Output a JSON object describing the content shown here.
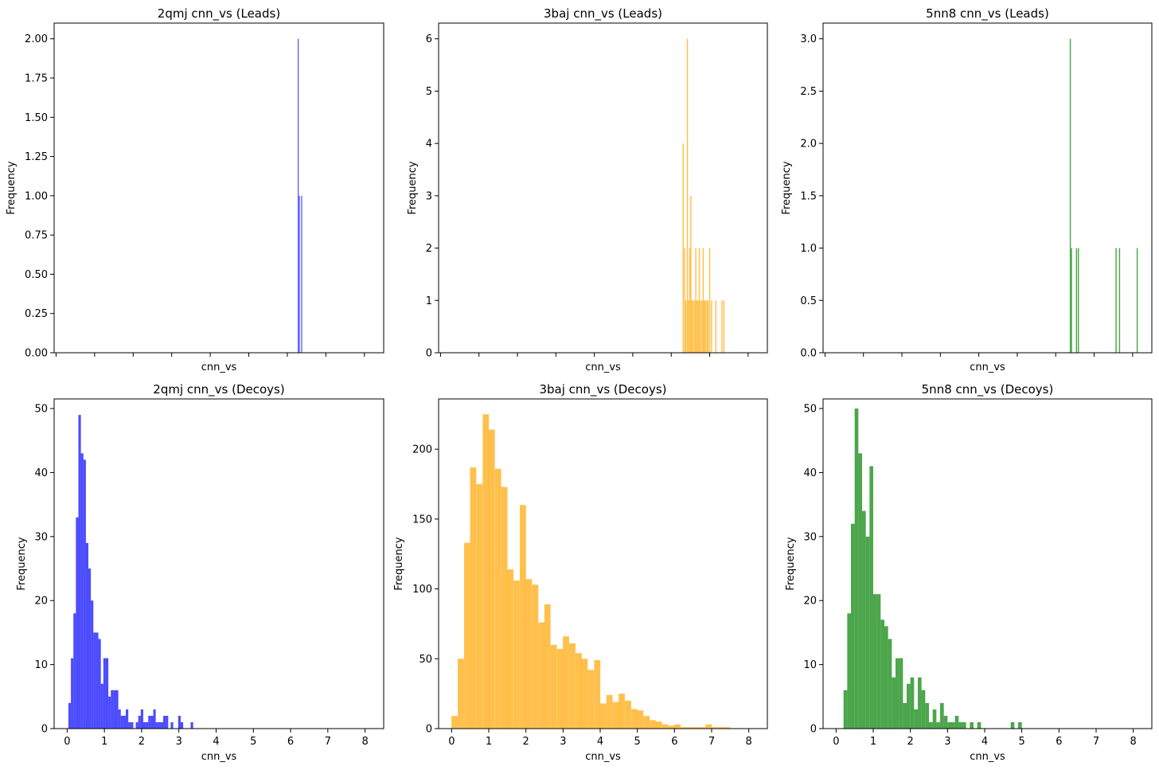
{
  "chart_data": [
    {
      "type": "bar",
      "title": "2qmj cnn_vs (Leads)",
      "xlabel": "cnn_vs",
      "ylabel": "Frequency",
      "color": "#0000ff",
      "xlim": [
        -0.05,
        8.5
      ],
      "ylim": [
        0,
        2.1
      ],
      "yticks": [
        0,
        0.25,
        0.5,
        0.75,
        1.0,
        1.25,
        1.5,
        1.75,
        2.0
      ],
      "ytick_labels": [
        "0.00",
        "0.25",
        "0.50",
        "0.75",
        "1.00",
        "1.25",
        "1.50",
        "1.75",
        "2.00"
      ],
      "xticks": [
        0,
        1,
        2,
        3,
        4,
        5,
        6,
        7,
        8
      ],
      "xtick_labels": [
        "",
        "",
        "",
        "",
        "",
        "",
        "",
        "",
        ""
      ],
      "bin_width": 0.02,
      "bars": [
        [
          6.28,
          2
        ],
        [
          6.31,
          1
        ],
        [
          6.37,
          1
        ]
      ]
    },
    {
      "type": "bar",
      "title": "3baj cnn_vs (Leads)",
      "xlabel": "cnn_vs",
      "ylabel": "Frequency",
      "color": "#ffa500",
      "xlim": [
        -0.05,
        8.5
      ],
      "ylim": [
        0,
        6.3
      ],
      "yticks": [
        0,
        1,
        2,
        3,
        4,
        5,
        6
      ],
      "ytick_labels": [
        "0",
        "1",
        "2",
        "3",
        "4",
        "5",
        "6"
      ],
      "xticks": [
        0,
        1,
        2,
        3,
        4,
        5,
        6,
        7,
        8
      ],
      "xtick_labels": [
        "",
        "",
        "",
        "",
        "",
        "",
        "",
        "",
        ""
      ],
      "bin_width": 0.03,
      "bars": [
        [
          6.31,
          4
        ],
        [
          6.35,
          2
        ],
        [
          6.38,
          1
        ],
        [
          6.42,
          6
        ],
        [
          6.45,
          1
        ],
        [
          6.48,
          2
        ],
        [
          6.51,
          3
        ],
        [
          6.54,
          1
        ],
        [
          6.57,
          1
        ],
        [
          6.61,
          1
        ],
        [
          6.64,
          2
        ],
        [
          6.67,
          1
        ],
        [
          6.7,
          1
        ],
        [
          6.73,
          2
        ],
        [
          6.76,
          1
        ],
        [
          6.8,
          1
        ],
        [
          6.83,
          2
        ],
        [
          6.86,
          1
        ],
        [
          6.89,
          1
        ],
        [
          6.93,
          1
        ],
        [
          6.96,
          1
        ],
        [
          7.0,
          2
        ],
        [
          7.05,
          1
        ],
        [
          7.16,
          1
        ],
        [
          7.32,
          1
        ],
        [
          7.37,
          1
        ]
      ]
    },
    {
      "type": "bar",
      "title": "5nn8 cnn_vs (Leads)",
      "xlabel": "cnn_vs",
      "ylabel": "Frequency",
      "color": "#008000",
      "xlim": [
        -0.05,
        8.5
      ],
      "ylim": [
        0,
        3.15
      ],
      "yticks": [
        0,
        0.5,
        1.0,
        1.5,
        2.0,
        2.5,
        3.0
      ],
      "ytick_labels": [
        "0.0",
        "0.5",
        "1.0",
        "1.5",
        "2.0",
        "2.5",
        "3.0"
      ],
      "xticks": [
        0,
        1,
        2,
        3,
        4,
        5,
        6,
        7,
        8
      ],
      "xtick_labels": [
        "",
        "",
        "",
        "",
        "",
        "",
        "",
        "",
        ""
      ],
      "bin_width": 0.03,
      "bars": [
        [
          6.38,
          3
        ],
        [
          6.41,
          1
        ],
        [
          6.54,
          1
        ],
        [
          6.59,
          1
        ],
        [
          7.57,
          1
        ],
        [
          7.66,
          1
        ],
        [
          8.12,
          1
        ]
      ]
    },
    {
      "type": "bar",
      "title": "2qmj cnn_vs (Decoys)",
      "xlabel": "cnn_vs",
      "ylabel": "Frequency",
      "color": "#0000ff",
      "xlim": [
        -0.35,
        8.5
      ],
      "ylim": [
        0,
        51.5
      ],
      "yticks": [
        0,
        10,
        20,
        30,
        40,
        50
      ],
      "ytick_labels": [
        "0",
        "10",
        "20",
        "30",
        "40",
        "50"
      ],
      "xticks": [
        0,
        1,
        2,
        3,
        4,
        5,
        6,
        7,
        8
      ],
      "xtick_labels": [
        "0",
        "1",
        "2",
        "3",
        "4",
        "5",
        "6",
        "7",
        "8"
      ],
      "bin_width": 0.067,
      "bars": [
        [
          0.067,
          4
        ],
        [
          0.134,
          11
        ],
        [
          0.201,
          18
        ],
        [
          0.268,
          33
        ],
        [
          0.335,
          49
        ],
        [
          0.402,
          43
        ],
        [
          0.469,
          42
        ],
        [
          0.536,
          29
        ],
        [
          0.603,
          25
        ],
        [
          0.67,
          20
        ],
        [
          0.737,
          15
        ],
        [
          0.804,
          15
        ],
        [
          0.871,
          14
        ],
        [
          0.938,
          7
        ],
        [
          1.005,
          11
        ],
        [
          1.072,
          11
        ],
        [
          1.139,
          5
        ],
        [
          1.206,
          6
        ],
        [
          1.273,
          6
        ],
        [
          1.34,
          6
        ],
        [
          1.407,
          3
        ],
        [
          1.474,
          2
        ],
        [
          1.541,
          2
        ],
        [
          1.608,
          3
        ],
        [
          1.675,
          1
        ],
        [
          1.742,
          1
        ],
        [
          1.876,
          1
        ],
        [
          1.943,
          2
        ],
        [
          2.01,
          3
        ],
        [
          2.077,
          1
        ],
        [
          2.144,
          1
        ],
        [
          2.211,
          2
        ],
        [
          2.278,
          2
        ],
        [
          2.345,
          3
        ],
        [
          2.412,
          1
        ],
        [
          2.479,
          1
        ],
        [
          2.546,
          1
        ],
        [
          2.613,
          2
        ],
        [
          2.68,
          2
        ],
        [
          2.814,
          1
        ],
        [
          3.015,
          2
        ],
        [
          3.082,
          1
        ],
        [
          3.35,
          1
        ]
      ]
    },
    {
      "type": "bar",
      "title": "3baj cnn_vs (Decoys)",
      "xlabel": "cnn_vs",
      "ylabel": "Frequency",
      "color": "#ffa500",
      "xlim": [
        -0.35,
        8.5
      ],
      "ylim": [
        0,
        236
      ],
      "yticks": [
        0,
        50,
        100,
        150,
        200
      ],
      "ytick_labels": [
        "0",
        "50",
        "100",
        "150",
        "200"
      ],
      "xticks": [
        0,
        1,
        2,
        3,
        4,
        5,
        6,
        7,
        8
      ],
      "xtick_labels": [
        "0",
        "1",
        "2",
        "3",
        "4",
        "5",
        "6",
        "7",
        "8"
      ],
      "bin_width": 0.167,
      "bars": [
        [
          0.08,
          9
        ],
        [
          0.25,
          50
        ],
        [
          0.42,
          133
        ],
        [
          0.58,
          187
        ],
        [
          0.75,
          175
        ],
        [
          0.92,
          225
        ],
        [
          1.08,
          214
        ],
        [
          1.25,
          186
        ],
        [
          1.42,
          173
        ],
        [
          1.58,
          114
        ],
        [
          1.75,
          106
        ],
        [
          1.92,
          160
        ],
        [
          2.08,
          107
        ],
        [
          2.25,
          103
        ],
        [
          2.42,
          76
        ],
        [
          2.58,
          89
        ],
        [
          2.75,
          60
        ],
        [
          2.92,
          57
        ],
        [
          3.08,
          66
        ],
        [
          3.25,
          61
        ],
        [
          3.42,
          54
        ],
        [
          3.58,
          50
        ],
        [
          3.75,
          42
        ],
        [
          3.92,
          49
        ],
        [
          4.08,
          18
        ],
        [
          4.25,
          24
        ],
        [
          4.42,
          19
        ],
        [
          4.58,
          25
        ],
        [
          4.75,
          20
        ],
        [
          4.92,
          14
        ],
        [
          5.08,
          13
        ],
        [
          5.25,
          9
        ],
        [
          5.42,
          6
        ],
        [
          5.58,
          5
        ],
        [
          5.75,
          3
        ],
        [
          5.92,
          2
        ],
        [
          6.08,
          3
        ],
        [
          6.25,
          1
        ],
        [
          6.42,
          1
        ],
        [
          6.58,
          1
        ],
        [
          6.75,
          1
        ],
        [
          6.92,
          3
        ],
        [
          7.08,
          1
        ],
        [
          7.25,
          1
        ],
        [
          7.42,
          1
        ]
      ]
    },
    {
      "type": "bar",
      "title": "5nn8 cnn_vs (Decoys)",
      "xlabel": "cnn_vs",
      "ylabel": "Frequency",
      "color": "#008000",
      "xlim": [
        -0.35,
        8.5
      ],
      "ylim": [
        0,
        51.5
      ],
      "yticks": [
        0,
        10,
        20,
        30,
        40,
        50
      ],
      "ytick_labels": [
        "0",
        "10",
        "20",
        "30",
        "40",
        "50"
      ],
      "xticks": [
        0,
        1,
        2,
        3,
        4,
        5,
        6,
        7,
        8
      ],
      "xtick_labels": [
        "0",
        "1",
        "2",
        "3",
        "4",
        "5",
        "6",
        "7",
        "8"
      ],
      "bin_width": 0.1,
      "bars": [
        [
          0.25,
          6
        ],
        [
          0.35,
          18
        ],
        [
          0.45,
          32
        ],
        [
          0.55,
          50
        ],
        [
          0.65,
          43
        ],
        [
          0.75,
          34
        ],
        [
          0.85,
          30
        ],
        [
          0.95,
          41
        ],
        [
          1.05,
          21
        ],
        [
          1.15,
          21
        ],
        [
          1.25,
          17
        ],
        [
          1.35,
          16
        ],
        [
          1.45,
          14
        ],
        [
          1.55,
          8
        ],
        [
          1.65,
          11
        ],
        [
          1.75,
          11
        ],
        [
          1.85,
          4
        ],
        [
          1.95,
          7
        ],
        [
          2.05,
          8
        ],
        [
          2.15,
          3
        ],
        [
          2.25,
          8
        ],
        [
          2.35,
          6
        ],
        [
          2.45,
          4
        ],
        [
          2.55,
          1
        ],
        [
          2.65,
          3
        ],
        [
          2.75,
          1
        ],
        [
          2.85,
          4
        ],
        [
          2.95,
          2
        ],
        [
          3.05,
          1
        ],
        [
          3.15,
          1
        ],
        [
          3.25,
          2
        ],
        [
          3.35,
          1
        ],
        [
          3.45,
          1
        ],
        [
          3.65,
          1
        ],
        [
          3.85,
          1
        ],
        [
          4.75,
          1
        ],
        [
          4.95,
          1
        ]
      ]
    }
  ]
}
